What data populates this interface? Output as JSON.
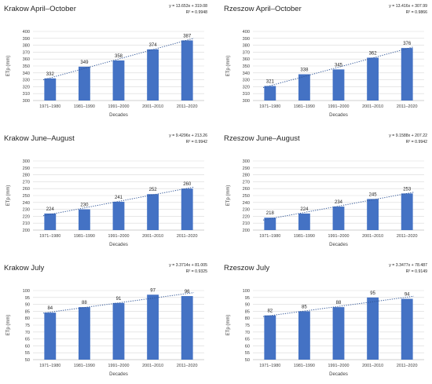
{
  "colors": {
    "bar": "#4472c4",
    "trend": "#2f5597",
    "grid": "#d9d9d9"
  },
  "chart_data": [
    {
      "type": "bar",
      "title": "Krakow April–October",
      "equation": "y = 13.653x + 319.08",
      "r2": "R² = 0.9948",
      "xlabel": "Decades",
      "ylabel": "ETp (mm)",
      "categories": [
        "1971–1980",
        "1981–1990",
        "1991–2000",
        "2001–2010",
        "2011–2020"
      ],
      "values": [
        332,
        349,
        358,
        374,
        387
      ],
      "ylim": [
        300,
        400
      ],
      "yticks": [
        300,
        310,
        320,
        330,
        340,
        350,
        360,
        370,
        380,
        390,
        400
      ],
      "trendline": {
        "slope": 13.653,
        "intercept": 319.08
      },
      "grid": true
    },
    {
      "type": "bar",
      "title": "Rzeszow April–October",
      "equation": "y = 13.416x + 307.99",
      "r2": "R² = 0.9866",
      "xlabel": "Decades",
      "ylabel": "ETp (mm)",
      "categories": [
        "1971–1980",
        "1981–1990",
        "1991–2000",
        "2001–2010",
        "2011–2020"
      ],
      "values": [
        321,
        338,
        345,
        362,
        376
      ],
      "ylim": [
        300,
        400
      ],
      "yticks": [
        300,
        310,
        320,
        330,
        340,
        350,
        360,
        370,
        380,
        390,
        400
      ],
      "trendline": {
        "slope": 13.416,
        "intercept": 307.99
      },
      "grid": true
    },
    {
      "type": "bar",
      "title": "Krakow June–August",
      "equation": "y = 9.4296x + 213.26",
      "r2": "R² = 0.9942",
      "xlabel": "Decades",
      "ylabel": "ETp (mm)",
      "categories": [
        "1971–1980",
        "1981–1990",
        "1991–2000",
        "2001–2010",
        "2011–2020"
      ],
      "values": [
        224,
        230,
        241,
        252,
        260
      ],
      "ylim": [
        200,
        300
      ],
      "yticks": [
        200,
        210,
        220,
        230,
        240,
        250,
        260,
        270,
        280,
        290,
        300
      ],
      "trendline": {
        "slope": 9.4296,
        "intercept": 213.26
      },
      "grid": true
    },
    {
      "type": "bar",
      "title": "Rzeszow June–August",
      "equation": "y = 9.1588x + 207.22",
      "r2": "R² = 0.9942",
      "xlabel": "Decades",
      "ylabel": "ETp (mm)",
      "categories": [
        "1971–1980",
        "1981–1990",
        "1991–2000",
        "2001–2010",
        "2011–2020"
      ],
      "values": [
        218,
        224,
        234,
        245,
        253
      ],
      "ylim": [
        200,
        300
      ],
      "yticks": [
        200,
        210,
        220,
        230,
        240,
        250,
        260,
        270,
        280,
        290,
        300
      ],
      "trendline": {
        "slope": 9.1588,
        "intercept": 207.22
      },
      "grid": true
    },
    {
      "type": "bar",
      "title": "Krakow July",
      "equation": "y = 3.3714x + 81.005",
      "r2": "R² = 0.9325",
      "xlabel": "Decades",
      "ylabel": "ETp (mm)",
      "categories": [
        "1971–1980",
        "1981–1990",
        "1991–2000",
        "2001–2010",
        "2011–2020"
      ],
      "values": [
        84,
        88,
        91,
        97,
        96
      ],
      "ylim": [
        50,
        100
      ],
      "yticks": [
        50,
        55,
        60,
        65,
        70,
        75,
        80,
        85,
        90,
        95,
        100
      ],
      "trendline": {
        "slope": 3.3714,
        "intercept": 81.005
      },
      "grid": true
    },
    {
      "type": "bar",
      "title": "Rzeszow July",
      "equation": "y = 3.3477x + 78.487",
      "r2": "R² = 0.9149",
      "xlabel": "Decades",
      "ylabel": "ETp (mm)",
      "categories": [
        "1971–1980",
        "1981–1990",
        "1991–2000",
        "2001–2010",
        "2011–2020"
      ],
      "values": [
        82,
        85,
        88,
        95,
        94
      ],
      "ylim": [
        50,
        100
      ],
      "yticks": [
        50,
        55,
        60,
        65,
        70,
        75,
        80,
        85,
        90,
        95,
        100
      ],
      "trendline": {
        "slope": 3.3477,
        "intercept": 78.487
      },
      "grid": true
    }
  ]
}
